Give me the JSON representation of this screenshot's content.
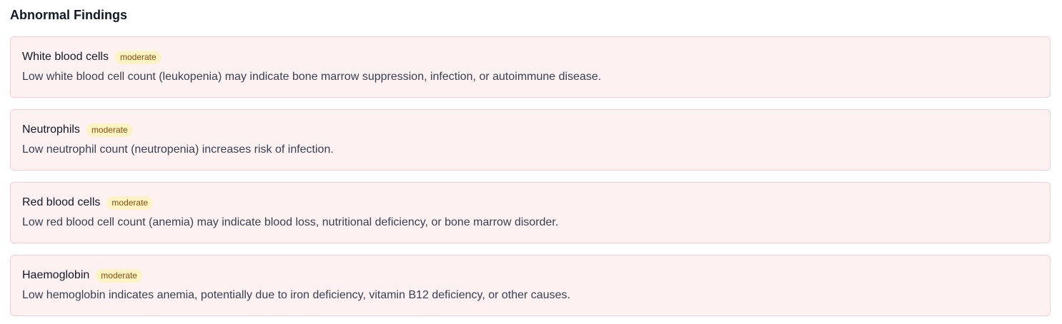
{
  "section": {
    "title": "Abnormal Findings"
  },
  "findings": [
    {
      "name": "White blood cells",
      "severity": "moderate",
      "description": "Low white blood cell count (leukopenia) may indicate bone marrow suppression, infection, or autoimmune disease."
    },
    {
      "name": "Neutrophils",
      "severity": "moderate",
      "description": "Low neutrophil count (neutropenia) increases risk of infection."
    },
    {
      "name": "Red blood cells",
      "severity": "moderate",
      "description": "Low red blood cell count (anemia) may indicate blood loss, nutritional deficiency, or bone marrow disorder."
    },
    {
      "name": "Haemoglobin",
      "severity": "moderate",
      "description": "Low hemoglobin indicates anemia, potentially due to iron deficiency, vitamin B12 deficiency, or other causes."
    }
  ],
  "colors": {
    "card_background": "#fef1f1",
    "card_border": "#f8cdd0",
    "badge_background": "#fdf3c4",
    "badge_text": "#8a4d0f"
  }
}
